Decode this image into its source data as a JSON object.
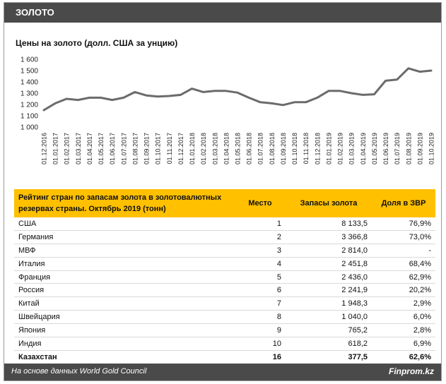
{
  "header": {
    "title": "ЗОЛОТО"
  },
  "chart_data": {
    "type": "line",
    "title": "Цены на золото (долл. США за унцию)",
    "ylim": [
      1000,
      1600
    ],
    "yticks": [
      "1 000",
      "1 100",
      "1 200",
      "1 300",
      "1 400",
      "1 500",
      "1 600"
    ],
    "ytick_values": [
      1000,
      1100,
      1200,
      1300,
      1400,
      1500,
      1600
    ],
    "grid": false,
    "x": [
      "01.12.2016",
      "01.01.2017",
      "01.02.2017",
      "01.03.2017",
      "01.04.2017",
      "01.05.2017",
      "01.06.2017",
      "01.07.2017",
      "01.08.2017",
      "01.09.2017",
      "01.10.2017",
      "01.11.2017",
      "01.12.2017",
      "01.01.2018",
      "01.02.2018",
      "01.03.2018",
      "01.04.2018",
      "01.05.2018",
      "01.06.2018",
      "01.07.2018",
      "01.08.2018",
      "01.09.2018",
      "01.10.2018",
      "01.11.2018",
      "01.12.2018",
      "01.01.2019",
      "01.02.2019",
      "01.03.2019",
      "01.04.2019",
      "01.05.2019",
      "01.06.2019",
      "01.07.2019",
      "01.08.2019",
      "01.09.2019",
      "01.10.2019"
    ],
    "series": [
      {
        "color": "#6b6b6b",
        "values": [
          1150,
          1210,
          1250,
          1240,
          1260,
          1260,
          1240,
          1260,
          1310,
          1280,
          1270,
          1275,
          1285,
          1340,
          1310,
          1320,
          1320,
          1305,
          1260,
          1220,
          1210,
          1195,
          1220,
          1220,
          1260,
          1320,
          1320,
          1300,
          1285,
          1290,
          1410,
          1420,
          1520,
          1490,
          1500
        ]
      }
    ]
  },
  "table": {
    "title": "Рейтинг стран по запасам золота в золотовалютных резервах страны. Октябрь 2019 (тонн)",
    "col_place": "Место",
    "col_reserves": "Запасы золота",
    "col_share": "Доля в ЗВР",
    "rows": [
      {
        "country": "США",
        "place": "1",
        "reserves": "8 133,5",
        "share": "76,9%"
      },
      {
        "country": "Германия",
        "place": "2",
        "reserves": "3 366,8",
        "share": "73,0%"
      },
      {
        "country": "МВФ",
        "place": "3",
        "reserves": "2 814,0",
        "share": "-"
      },
      {
        "country": "Италия",
        "place": "4",
        "reserves": "2 451,8",
        "share": "68,4%"
      },
      {
        "country": "Франция",
        "place": "5",
        "reserves": "2 436,0",
        "share": "62,9%"
      },
      {
        "country": "Россия",
        "place": "6",
        "reserves": "2 241,9",
        "share": "20,2%"
      },
      {
        "country": "Китай",
        "place": "7",
        "reserves": "1 948,3",
        "share": "2,9%"
      },
      {
        "country": "Швейцария",
        "place": "8",
        "reserves": "1 040,0",
        "share": "6,0%"
      },
      {
        "country": "Япония",
        "place": "9",
        "reserves": "765,2",
        "share": "2,8%"
      },
      {
        "country": "Индия",
        "place": "10",
        "reserves": "618,2",
        "share": "6,9%"
      },
      {
        "country": "Казахстан",
        "place": "16",
        "reserves": "377,5",
        "share": "62,6%"
      }
    ]
  },
  "footer": {
    "source": "На основе данных World Gold Council",
    "brand": "Finprom.kz"
  },
  "colors": {
    "header_bg": "#4a4a4a",
    "accent": "#ffc000",
    "line": "#6b6b6b"
  }
}
